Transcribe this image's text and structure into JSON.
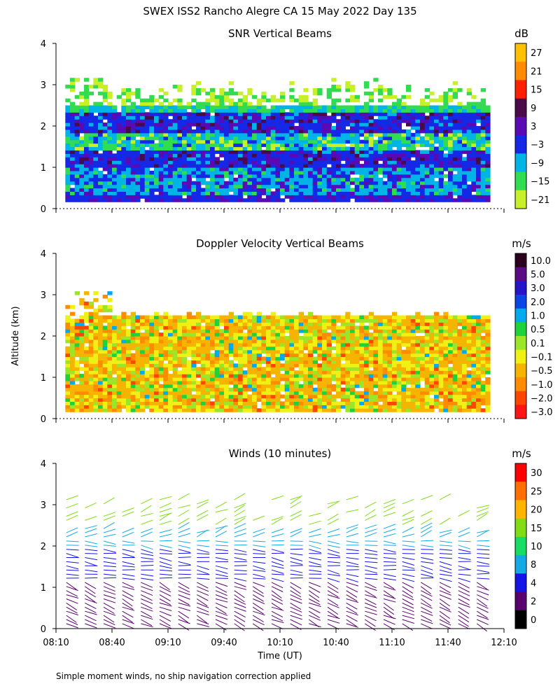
{
  "figure": {
    "title": "SWEX ISS2 Rancho Alegre CA  15 May 2022 Day 135",
    "ylabel": "Altitude (km)",
    "xlabel": "Time (UT)",
    "footnote": "Simple moment winds, no ship navigation correction applied"
  },
  "chart_data": [
    {
      "type": "heatmap",
      "title": "SNR Vertical Beams",
      "unit": "dB",
      "ylim": [
        0,
        4
      ],
      "y_ticks": [
        "0",
        "1",
        "2",
        "3",
        "4"
      ],
      "xlim": [
        "08:10",
        "12:10"
      ],
      "colorbar": {
        "labels": [
          "27",
          "21",
          "15",
          "9",
          "3",
          "−3",
          "−9",
          "−15",
          "−21"
        ],
        "colors": [
          "#ffc000",
          "#ff8c00",
          "#ff2000",
          "#4a0a4a",
          "#5a0ab4",
          "#1428e6",
          "#00b4e6",
          "#32dc50",
          "#c8f028"
        ]
      },
      "layers": [
        {
          "from": 0.15,
          "to": 0.3,
          "dominant": "−3 to 3 dB"
        },
        {
          "from": 0.3,
          "to": 2.4,
          "dominant": "−9 to 3 dB"
        },
        {
          "from": 2.4,
          "to": 3.3,
          "dominant": "−21 to −15 dB (sparse)"
        }
      ]
    },
    {
      "type": "heatmap",
      "title": "Doppler Velocity Vertical Beams",
      "unit": "m/s",
      "ylim": [
        0,
        4
      ],
      "y_ticks": [
        "0",
        "1",
        "2",
        "3",
        "4"
      ],
      "xlim": [
        "08:10",
        "12:10"
      ],
      "colorbar": {
        "labels": [
          "10.0",
          "5.0",
          "3.0",
          "2.0",
          "1.0",
          "0.5",
          "0.1",
          "−0.1",
          "−0.5",
          "−1.0",
          "−2.0",
          "−3.0"
        ],
        "colors": [
          "#2a001e",
          "#5a0a82",
          "#2814c8",
          "#0a46e6",
          "#00aaee",
          "#1ed23c",
          "#9be628",
          "#f0f014",
          "#f5b400",
          "#ff8c00",
          "#ff4600",
          "#ff1414"
        ]
      },
      "layers": [
        {
          "from": 0.15,
          "to": 2.5,
          "dominant": "−0.5 to 0.1 m/s"
        }
      ]
    },
    {
      "type": "wind_barbs",
      "title": "Winds (10 minutes)",
      "unit": "m/s",
      "ylim": [
        0,
        4
      ],
      "y_ticks": [
        "0",
        "1",
        "2",
        "3",
        "4"
      ],
      "xlim": [
        "08:10",
        "12:10"
      ],
      "colorbar": {
        "labels": [
          "30",
          "25",
          "20",
          "15",
          "10",
          "8",
          "4",
          "2",
          "0"
        ],
        "colors": [
          "#ff0000",
          "#ff6e00",
          "#ffb400",
          "#82dc14",
          "#14dc64",
          "#14aae6",
          "#1414e6",
          "#5a006e",
          "#000000"
        ]
      },
      "times": [
        "08:10",
        "08:20",
        "08:30",
        "08:40",
        "08:50",
        "09:00",
        "09:10",
        "09:20",
        "09:30",
        "09:40",
        "09:50",
        "10:00",
        "10:10",
        "10:20",
        "10:30",
        "10:40",
        "10:50",
        "11:00",
        "11:10",
        "11:20",
        "11:30",
        "11:40",
        "11:50",
        "12:00",
        "12:10"
      ],
      "barb_times": [
        "08:20",
        "08:30",
        "08:40",
        "08:50",
        "09:00",
        "09:10",
        "09:20",
        "09:30",
        "09:40",
        "09:50",
        "10:00",
        "10:10",
        "10:20",
        "10:30",
        "10:40",
        "10:50",
        "11:00",
        "11:10",
        "11:20",
        "11:30",
        "11:40",
        "11:50",
        "12:00"
      ]
    }
  ],
  "x_tick_labels": [
    "08:10",
    "08:40",
    "09:10",
    "09:40",
    "10:10",
    "10:40",
    "11:10",
    "11:40",
    "12:10"
  ]
}
